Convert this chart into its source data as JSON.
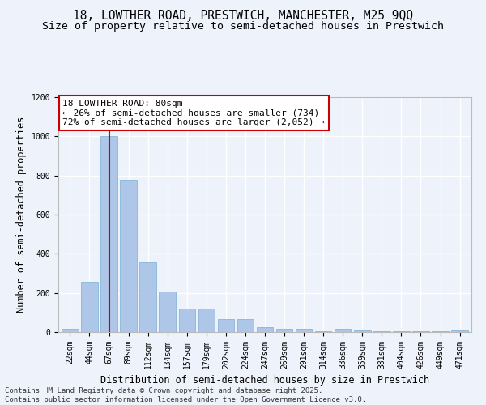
{
  "title1": "18, LOWTHER ROAD, PRESTWICH, MANCHESTER, M25 9QQ",
  "title2": "Size of property relative to semi-detached houses in Prestwich",
  "xlabel": "Distribution of semi-detached houses by size in Prestwich",
  "ylabel": "Number of semi-detached properties",
  "categories": [
    "22sqm",
    "44sqm",
    "67sqm",
    "89sqm",
    "112sqm",
    "134sqm",
    "157sqm",
    "179sqm",
    "202sqm",
    "224sqm",
    "247sqm",
    "269sqm",
    "291sqm",
    "314sqm",
    "336sqm",
    "359sqm",
    "381sqm",
    "404sqm",
    "426sqm",
    "449sqm",
    "471sqm"
  ],
  "values": [
    15,
    255,
    1000,
    780,
    355,
    205,
    120,
    120,
    65,
    65,
    25,
    15,
    15,
    3,
    15,
    10,
    3,
    3,
    3,
    3,
    8
  ],
  "bar_color": "#aec6e8",
  "bar_edge_color": "#7aafd4",
  "highlight_bar_index": 2,
  "highlight_color": "#cc0000",
  "annotation_title": "18 LOWTHER ROAD: 80sqm",
  "annotation_line1": "← 26% of semi-detached houses are smaller (734)",
  "annotation_line2": "72% of semi-detached houses are larger (2,052) →",
  "annotation_box_color": "#ffffff",
  "annotation_box_edge_color": "#cc0000",
  "ylim": [
    0,
    1200
  ],
  "yticks": [
    0,
    200,
    400,
    600,
    800,
    1000,
    1200
  ],
  "footer1": "Contains HM Land Registry data © Crown copyright and database right 2025.",
  "footer2": "Contains public sector information licensed under the Open Government Licence v3.0.",
  "bg_color": "#eef2fa",
  "grid_color": "#ffffff",
  "title_fontsize": 10.5,
  "subtitle_fontsize": 9.5,
  "axis_label_fontsize": 8.5,
  "tick_fontsize": 7,
  "annotation_fontsize": 8,
  "footer_fontsize": 6.5
}
